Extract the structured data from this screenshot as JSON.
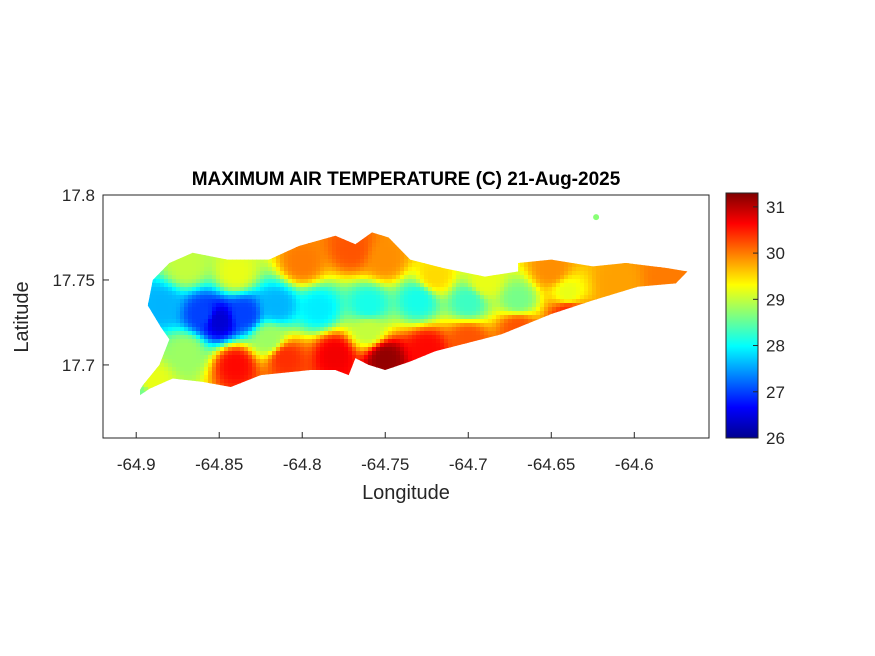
{
  "map": {
    "title": "MAXIMUM AIR TEMPERATURE (C) 21-Aug-2025",
    "xlabel": "Longitude",
    "ylabel": "Latitude",
    "xlim": [
      -64.92,
      -64.555
    ],
    "ylim": [
      17.657,
      17.8
    ],
    "x_ticks": [
      {
        "value": -64.9,
        "label": "-64.9"
      },
      {
        "value": -64.85,
        "label": "-64.85"
      },
      {
        "value": -64.8,
        "label": "-64.8"
      },
      {
        "value": -64.75,
        "label": "-64.75"
      },
      {
        "value": -64.7,
        "label": "-64.7"
      },
      {
        "value": -64.65,
        "label": "-64.65"
      },
      {
        "value": -64.6,
        "label": "-64.6"
      }
    ],
    "y_ticks": [
      {
        "value": 17.7,
        "label": "17.7"
      },
      {
        "value": 17.75,
        "label": "17.75"
      },
      {
        "value": 17.8,
        "label": "17.8"
      }
    ],
    "colorbar": {
      "min": 26,
      "max": 31.3,
      "colormap": "jet",
      "ticks": [
        {
          "value": 26,
          "label": "26"
        },
        {
          "value": 27,
          "label": "27"
        },
        {
          "value": 28,
          "label": "28"
        },
        {
          "value": 29,
          "label": "29"
        },
        {
          "value": 30,
          "label": "30"
        },
        {
          "value": 31,
          "label": "31"
        }
      ]
    },
    "coast_outline": [
      [
        -64.885,
        17.722
      ],
      [
        -64.893,
        17.735
      ],
      [
        -64.89,
        17.75
      ],
      [
        -64.88,
        17.76
      ],
      [
        -64.866,
        17.766
      ],
      [
        -64.845,
        17.762
      ],
      [
        -64.82,
        17.762
      ],
      [
        -64.802,
        17.77
      ],
      [
        -64.78,
        17.776
      ],
      [
        -64.768,
        17.771
      ],
      [
        -64.758,
        17.778
      ],
      [
        -64.748,
        17.775
      ],
      [
        -64.735,
        17.762
      ],
      [
        -64.715,
        17.757
      ],
      [
        -64.69,
        17.752
      ],
      [
        -64.67,
        17.755
      ],
      [
        -64.67,
        17.76
      ],
      [
        -64.65,
        17.762
      ],
      [
        -64.625,
        17.758
      ],
      [
        -64.605,
        17.76
      ],
      [
        -64.58,
        17.757
      ],
      [
        -64.568,
        17.755
      ],
      [
        -64.575,
        17.748
      ],
      [
        -64.598,
        17.746
      ],
      [
        -64.625,
        17.738
      ],
      [
        -64.65,
        17.73
      ],
      [
        -64.68,
        17.718
      ],
      [
        -64.72,
        17.708
      ],
      [
        -64.735,
        17.702
      ],
      [
        -64.75,
        17.697
      ],
      [
        -64.76,
        17.7
      ],
      [
        -64.768,
        17.704
      ],
      [
        -64.772,
        17.694
      ],
      [
        -64.78,
        17.697
      ],
      [
        -64.795,
        17.697
      ],
      [
        -64.825,
        17.694
      ],
      [
        -64.843,
        17.687
      ],
      [
        -64.86,
        17.69
      ],
      [
        -64.878,
        17.692
      ],
      [
        -64.892,
        17.686
      ],
      [
        -64.901,
        17.68
      ],
      [
        -64.896,
        17.688
      ],
      [
        -64.886,
        17.7
      ],
      [
        -64.88,
        17.715
      ]
    ],
    "temperature_stations": [
      {
        "lon": -64.885,
        "lat": 17.735,
        "t": 27.6
      },
      {
        "lon": -64.86,
        "lat": 17.73,
        "t": 27.0
      },
      {
        "lon": -64.85,
        "lat": 17.726,
        "t": 26.4
      },
      {
        "lon": -64.835,
        "lat": 17.73,
        "t": 27.0
      },
      {
        "lon": -64.815,
        "lat": 17.735,
        "t": 27.6
      },
      {
        "lon": -64.79,
        "lat": 17.733,
        "t": 27.9
      },
      {
        "lon": -64.76,
        "lat": 17.735,
        "t": 28.1
      },
      {
        "lon": -64.73,
        "lat": 17.738,
        "t": 28.1
      },
      {
        "lon": -64.7,
        "lat": 17.737,
        "t": 28.3
      },
      {
        "lon": -64.67,
        "lat": 17.738,
        "t": 28.6
      },
      {
        "lon": -64.64,
        "lat": 17.742,
        "t": 29.2
      },
      {
        "lon": -64.61,
        "lat": 17.748,
        "t": 29.8
      },
      {
        "lon": -64.58,
        "lat": 17.751,
        "t": 30.0
      },
      {
        "lon": -64.87,
        "lat": 17.758,
        "t": 29.0
      },
      {
        "lon": -64.84,
        "lat": 17.754,
        "t": 29.2
      },
      {
        "lon": -64.8,
        "lat": 17.76,
        "t": 30.0
      },
      {
        "lon": -64.77,
        "lat": 17.768,
        "t": 30.2
      },
      {
        "lon": -64.75,
        "lat": 17.762,
        "t": 29.9
      },
      {
        "lon": -64.72,
        "lat": 17.752,
        "t": 29.5
      },
      {
        "lon": -64.69,
        "lat": 17.749,
        "t": 29.2
      },
      {
        "lon": -64.65,
        "lat": 17.756,
        "t": 29.9
      },
      {
        "lon": -64.87,
        "lat": 17.708,
        "t": 28.8
      },
      {
        "lon": -64.84,
        "lat": 17.7,
        "t": 30.6
      },
      {
        "lon": -64.81,
        "lat": 17.704,
        "t": 30.4
      },
      {
        "lon": -64.78,
        "lat": 17.706,
        "t": 30.7
      },
      {
        "lon": -64.75,
        "lat": 17.704,
        "t": 31.2
      },
      {
        "lon": -64.725,
        "lat": 17.709,
        "t": 30.6
      },
      {
        "lon": -64.7,
        "lat": 17.715,
        "t": 30.2
      },
      {
        "lon": -64.67,
        "lat": 17.722,
        "t": 30.2
      },
      {
        "lon": -64.64,
        "lat": 17.731,
        "t": 30.4
      },
      {
        "lon": -64.89,
        "lat": 17.69,
        "t": 29.2
      },
      {
        "lon": -64.898,
        "lat": 17.682,
        "t": 28.6
      },
      {
        "lon": -64.76,
        "lat": 17.72,
        "t": 29.0
      },
      {
        "lon": -64.82,
        "lat": 17.715,
        "t": 28.8
      }
    ],
    "islet": {
      "lon": -64.623,
      "lat": 17.787,
      "t": 28.7
    }
  }
}
